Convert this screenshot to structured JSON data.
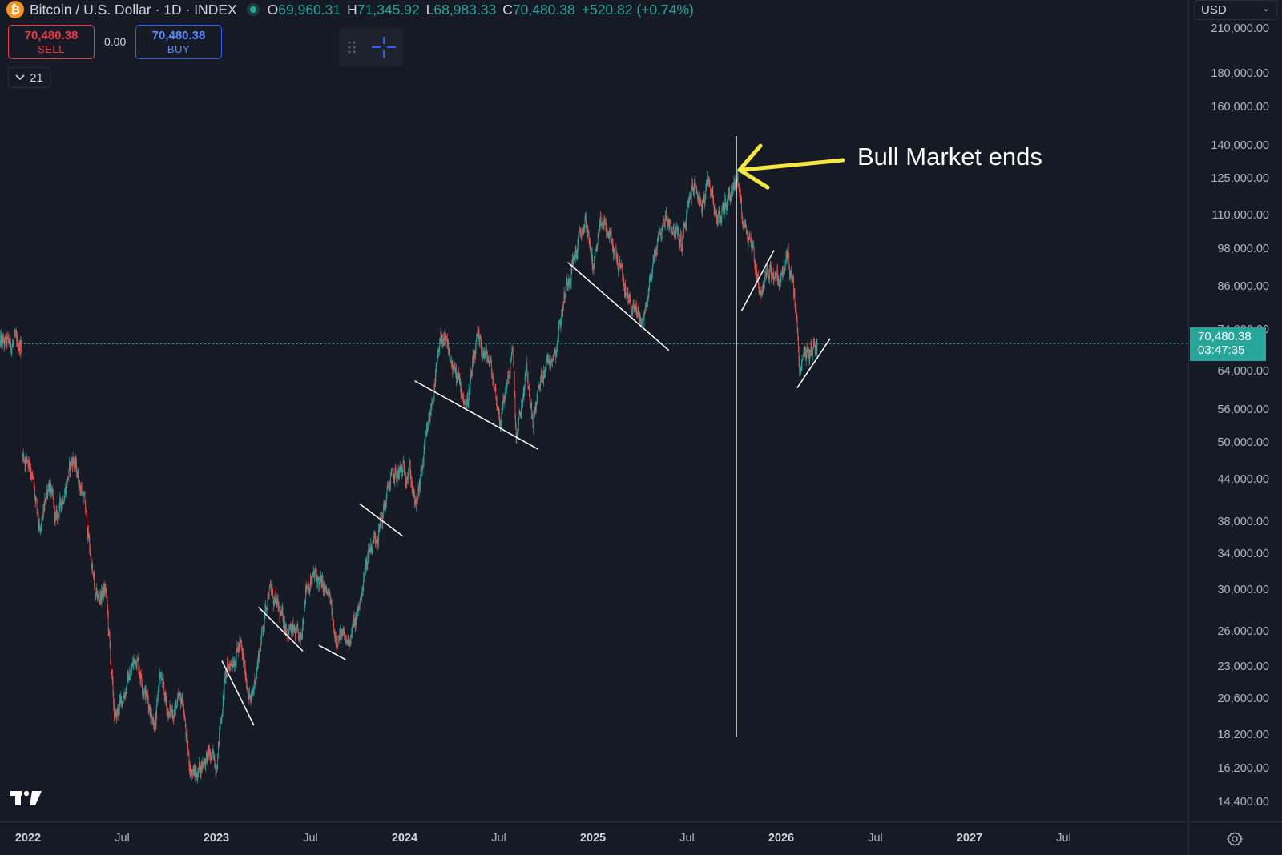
{
  "header": {
    "coin_icon": "bitcoin-icon",
    "symbol_title": "Bitcoin / U.S. Dollar · 1D · INDEX",
    "open_label": "O",
    "open_value": "69,960.31",
    "high_label": "H",
    "high_value": "71,345.92",
    "low_label": "L",
    "low_value": "68,983.33",
    "close_label": "C",
    "close_value": "70,480.38",
    "change": "+520.82 (+0.74%)"
  },
  "trade": {
    "sell_price": "70,480.38",
    "sell_label": "SELL",
    "spread": "0.00",
    "buy_price": "70,480.38",
    "buy_label": "BUY"
  },
  "indicators": {
    "collapse_count": "21"
  },
  "currency": "USD",
  "last_price": {
    "price": "70,480.38",
    "countdown": "03:47:35"
  },
  "annotation": {
    "text": "Bull Market ends"
  },
  "colors": {
    "background": "#161a25",
    "up": "#26a69a",
    "down": "#ef5350",
    "arrow": "#f5e642",
    "trendline": "#ffffff"
  },
  "price_axis": {
    "ticks": [
      "210,000.00",
      "180,000.00",
      "160,000.00",
      "140,000.00",
      "125,000.00",
      "110,000.00",
      "98,000.00",
      "86,000.00",
      "74,000.00",
      "64,000.00",
      "56,000.00",
      "50,000.00",
      "44,000.00",
      "38,000.00",
      "34,000.00",
      "30,000.00",
      "26,000.00",
      "23,000.00",
      "20,600.00",
      "18,200.00",
      "16,200.00",
      "14,400.00"
    ]
  },
  "time_axis": {
    "ticks": [
      {
        "label": "2022",
        "year": true
      },
      {
        "label": "Jul",
        "year": false
      },
      {
        "label": "2023",
        "year": true
      },
      {
        "label": "Jul",
        "year": false
      },
      {
        "label": "2024",
        "year": true
      },
      {
        "label": "Jul",
        "year": false
      },
      {
        "label": "2025",
        "year": true
      },
      {
        "label": "Jul",
        "year": false
      },
      {
        "label": "2026",
        "year": true
      },
      {
        "label": "Jul",
        "year": false
      },
      {
        "label": "2027",
        "year": true
      },
      {
        "label": "Jul",
        "year": false
      }
    ]
  },
  "chart_data": {
    "type": "line",
    "title": "Bitcoin / U.S. Dollar · 1D · INDEX",
    "xlabel": "",
    "ylabel": "",
    "y_scale": "log",
    "ylim": [
      13500,
      215000
    ],
    "xlim": [
      "2021-12-20",
      "2027-09-20"
    ],
    "grid": false,
    "series": [
      {
        "x": [
          "2021-12-20",
          "2022-01-05",
          "2022-01-24",
          "2022-02-10",
          "2022-02-24",
          "2022-03-29",
          "2022-04-20",
          "2022-05-12",
          "2022-06-01",
          "2022-06-18",
          "2022-07-10",
          "2022-07-30",
          "2022-08-15",
          "2022-09-06",
          "2022-09-13",
          "2022-10-01",
          "2022-10-28",
          "2022-11-09",
          "2022-11-21",
          "2022-12-15",
          "2023-01-01",
          "2023-01-20",
          "2023-02-16",
          "2023-03-10",
          "2023-04-13",
          "2023-05-10",
          "2023-06-15",
          "2023-06-23",
          "2023-07-13",
          "2023-08-10",
          "2023-08-17",
          "2023-09-11",
          "2023-10-01",
          "2023-10-24",
          "2023-11-15",
          "2023-12-05",
          "2024-01-11",
          "2024-01-23",
          "2024-02-15",
          "2024-03-14",
          "2024-04-01",
          "2024-05-01",
          "2024-05-21",
          "2024-06-15",
          "2024-07-05",
          "2024-07-29",
          "2024-08-05",
          "2024-08-25",
          "2024-09-06",
          "2024-09-28",
          "2024-10-20",
          "2024-11-12",
          "2024-12-17",
          "2025-01-01",
          "2025-01-20",
          "2025-02-15",
          "2025-03-10",
          "2025-04-08",
          "2025-05-01",
          "2025-05-22",
          "2025-06-22",
          "2025-07-14",
          "2025-08-02",
          "2025-08-14",
          "2025-09-01",
          "2025-09-20",
          "2025-10-06",
          "2025-10-20",
          "2025-11-05",
          "2025-11-21",
          "2025-12-10",
          "2025-12-30",
          "2026-01-14",
          "2026-02-01",
          "2026-02-05",
          "2026-02-15",
          "2026-03-01",
          "2026-03-12"
        ],
        "values": [
          48000,
          47000,
          36000,
          44000,
          38000,
          47500,
          41000,
          29000,
          30000,
          19000,
          21500,
          24000,
          21200,
          18800,
          22500,
          19500,
          20500,
          16500,
          15800,
          17000,
          16500,
          22600,
          24800,
          20200,
          30300,
          27000,
          25000,
          30500,
          31500,
          29000,
          26000,
          25000,
          27300,
          34500,
          37500,
          44000,
          46000,
          39500,
          52000,
          73000,
          66000,
          57000,
          71000,
          66000,
          54000,
          69000,
          50000,
          64000,
          54000,
          65500,
          69000,
          88000,
          108000,
          93000,
          108000,
          96000,
          82000,
          76000,
          97000,
          110000,
          100000,
          123000,
          113000,
          124000,
          108000,
          117000,
          126000,
          108000,
          100000,
          84000,
          92000,
          87000,
          96500,
          76000,
          62000,
          68000,
          69000,
          70480.38
        ]
      }
    ],
    "annotations": [
      {
        "text": "Bull Market ends",
        "x": "2025-10-06",
        "y": 126000
      }
    ],
    "last_price": 70480.38
  }
}
